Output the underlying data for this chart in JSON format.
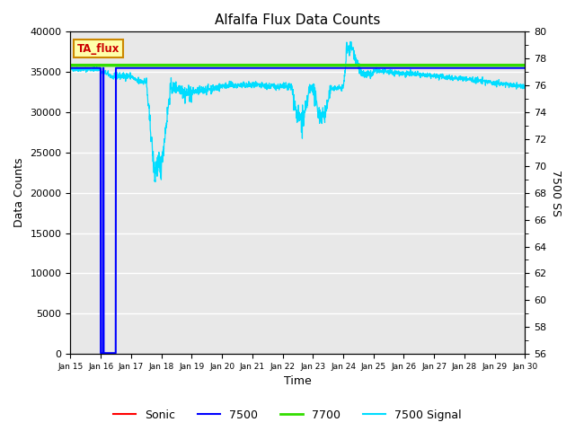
{
  "title": "Alfalfa Flux Data Counts",
  "xlabel": "Time",
  "ylabel_left": "Data Counts",
  "ylabel_right": "7500 SS",
  "annotation": "TA_flux",
  "ylim_left": [
    0,
    40000
  ],
  "ylim_right": [
    56,
    80
  ],
  "colors": {
    "sonic": "#ff0000",
    "c7500": "#0000ff",
    "c7700": "#33dd00",
    "signal": "#00ddff",
    "background": "#e8e8e8"
  },
  "legend_labels": [
    "Sonic",
    "7500",
    "7700",
    "7500 Signal"
  ],
  "legend_colors": [
    "#ff0000",
    "#0000ff",
    "#33dd00",
    "#00ddff"
  ],
  "right_axis_ticks": [
    56,
    58,
    60,
    62,
    64,
    66,
    68,
    70,
    72,
    74,
    76,
    78,
    80
  ],
  "left_axis_ticks": [
    0,
    5000,
    10000,
    15000,
    20000,
    25000,
    30000,
    35000,
    40000
  ]
}
